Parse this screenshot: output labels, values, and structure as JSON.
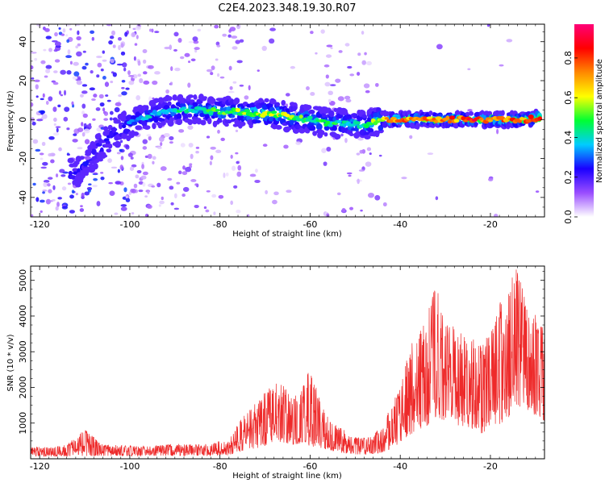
{
  "title": "C2E4.2023.348.19.30.R07",
  "chart_data": [
    {
      "type": "heatmap",
      "xlabel": "Height of straight line (km)",
      "ylabel": "Frequency (Hz)",
      "xlim": [
        -122,
        -8
      ],
      "ylim": [
        -50,
        49
      ],
      "xticks": [
        -120,
        -100,
        -80,
        -60,
        -40,
        -20
      ],
      "yticks": [
        -40,
        -20,
        0,
        20,
        40
      ],
      "grid": false,
      "colorbar": {
        "label": "Normalized spectral amplitude",
        "range": [
          0,
          0.97
        ],
        "ticks": [
          "0.0",
          "0.2",
          "0.4",
          "0.6",
          "0.8"
        ],
        "tick_values": [
          0.0,
          0.2,
          0.4,
          0.6,
          0.8
        ],
        "colormap": [
          "#ffffff",
          "#9a4dff",
          "#1a00ff",
          "#00ccff",
          "#00ff33",
          "#ffff00",
          "#ff8800",
          "#ff0000",
          "#ff0077"
        ]
      },
      "ridge": {
        "x": [
          -112,
          -108,
          -104,
          -100,
          -96,
          -92,
          -88,
          -84,
          -80,
          -76,
          -72,
          -68,
          -64,
          -60,
          -56,
          -52,
          -48,
          -44,
          -40,
          -36,
          -32,
          -28,
          -24,
          -20,
          -16,
          -12,
          -9
        ],
        "frequency": [
          -28,
          -18,
          -8,
          -2,
          2,
          4,
          5,
          5,
          4,
          4,
          3,
          3,
          1,
          0,
          -2,
          -2,
          -3,
          0,
          0,
          0,
          0,
          0,
          0,
          0,
          0,
          0,
          1
        ],
        "peak_amplitude": [
          0.25,
          0.3,
          0.3,
          0.35,
          0.4,
          0.45,
          0.5,
          0.5,
          0.55,
          0.6,
          0.65,
          0.65,
          0.6,
          0.55,
          0.5,
          0.5,
          0.5,
          0.75,
          0.85,
          0.85,
          0.85,
          0.85,
          0.9,
          0.9,
          0.9,
          0.9,
          0.9
        ]
      }
    },
    {
      "type": "line",
      "xlabel": "Height of straight line (km)",
      "ylabel": "SNR (10 * v/v)",
      "xlim": [
        -122,
        -8
      ],
      "ylim": [
        0,
        5400
      ],
      "xticks": [
        -120,
        -100,
        -80,
        -60,
        -40,
        -20
      ],
      "yticks": [
        1000,
        2000,
        3000,
        4000,
        5000
      ],
      "color": "#ee2a2a",
      "grid": false,
      "series": [
        {
          "x": [
            -122,
            -118,
            -114,
            -110,
            -106,
            -102,
            -98,
            -94,
            -90,
            -86,
            -82,
            -78,
            -76,
            -74,
            -72,
            -70,
            -68,
            -66,
            -64,
            -62,
            -60,
            -58,
            -56,
            -54,
            -52,
            -50,
            -48,
            -46,
            -44,
            -42,
            -40,
            -38,
            -36,
            -34,
            -32,
            -30,
            -28,
            -26,
            -24,
            -22,
            -20,
            -18,
            -16,
            -14,
            -12,
            -10,
            -8
          ],
          "y": [
            200,
            180,
            200,
            220,
            230,
            230,
            220,
            230,
            250,
            240,
            260,
            280,
            450,
            600,
            800,
            1000,
            1400,
            1300,
            1100,
            1200,
            1000,
            900,
            700,
            550,
            400,
            350,
            330,
            380,
            500,
            800,
            1300,
            1900,
            2300,
            2600,
            3400,
            3000,
            2700,
            2600,
            2400,
            2000,
            2400,
            2700,
            3300,
            4200,
            4000,
            3400,
            3000
          ],
          "envelope": [
            350,
            330,
            400,
            820,
            400,
            380,
            360,
            380,
            420,
            400,
            450,
            550,
            1000,
            1300,
            1600,
            1900,
            2200,
            2050,
            1800,
            1900,
            2600,
            1700,
            1200,
            900,
            800,
            600,
            600,
            700,
            900,
            1500,
            2000,
            3100,
            3600,
            4100,
            4900,
            3900,
            3700,
            3500,
            3400,
            3300,
            3500,
            4300,
            5300,
            5450,
            4600,
            4200,
            3900
          ]
        }
      ]
    }
  ]
}
